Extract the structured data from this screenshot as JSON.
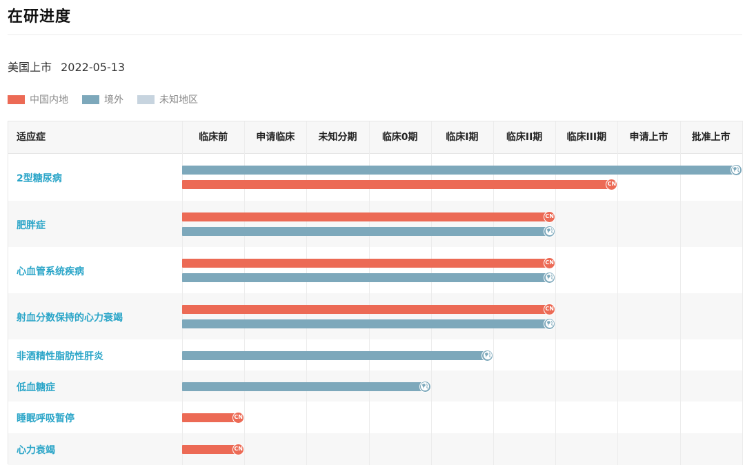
{
  "page": {
    "title": "在研进度",
    "market_label": "美国上市",
    "market_date": "2022-05-13"
  },
  "colors": {
    "mainland": "#ec6a55",
    "overseas": "#7da8bb",
    "unknown": "#c7d4df",
    "label": "#2aa5c8"
  },
  "legend": [
    {
      "key": "mainland",
      "label": "中国内地"
    },
    {
      "key": "overseas",
      "label": "境外"
    },
    {
      "key": "unknown",
      "label": "未知地区"
    }
  ],
  "table": {
    "indication_header": "适应症"
  },
  "icons": {
    "mainland": "CN",
    "overseas": "globe-icon"
  },
  "chart_data": {
    "type": "bar",
    "orientation": "horizontal",
    "categories": [
      "临床前",
      "申请临床",
      "未知分期",
      "临床0期",
      "临床I期",
      "临床II期",
      "临床III期",
      "申请上市",
      "批准上市"
    ],
    "rows": [
      {
        "indication": "2型糖尿病",
        "bars": [
          {
            "region": "overseas",
            "stage": "批准上市"
          },
          {
            "region": "mainland",
            "stage": "临床III期"
          }
        ]
      },
      {
        "indication": "肥胖症",
        "bars": [
          {
            "region": "mainland",
            "stage": "临床II期"
          },
          {
            "region": "overseas",
            "stage": "临床II期"
          }
        ]
      },
      {
        "indication": "心血管系统疾病",
        "bars": [
          {
            "region": "mainland",
            "stage": "临床II期"
          },
          {
            "region": "overseas",
            "stage": "临床II期"
          }
        ]
      },
      {
        "indication": "射血分数保持的心力衰竭",
        "bars": [
          {
            "region": "mainland",
            "stage": "临床II期"
          },
          {
            "region": "overseas",
            "stage": "临床II期"
          }
        ]
      },
      {
        "indication": "非酒精性脂肪性肝炎",
        "bars": [
          {
            "region": "overseas",
            "stage": "临床I期"
          }
        ]
      },
      {
        "indication": "低血糖症",
        "bars": [
          {
            "region": "overseas",
            "stage": "临床0期"
          }
        ]
      },
      {
        "indication": "睡眠呼吸暂停",
        "bars": [
          {
            "region": "mainland",
            "stage": "临床前"
          }
        ]
      },
      {
        "indication": "心力衰竭",
        "bars": [
          {
            "region": "mainland",
            "stage": "临床前"
          }
        ]
      }
    ]
  }
}
